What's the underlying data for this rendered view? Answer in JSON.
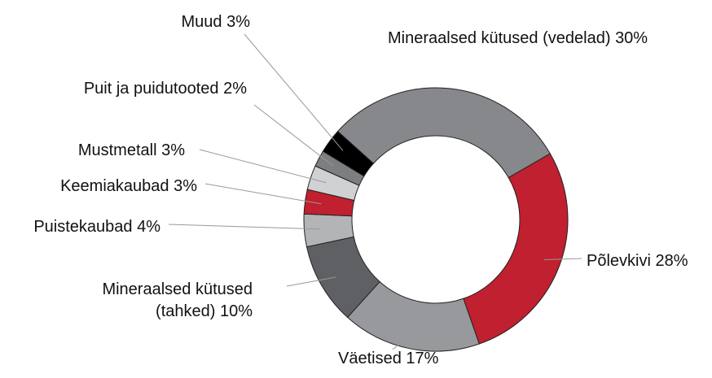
{
  "chart_data": {
    "type": "donut",
    "categories": [
      "Mineraalsed kütused (vedelad)",
      "Põlevkivi",
      "Väetised",
      "Mineraalsed kütused (tahked)",
      "Puistekaubad",
      "Keemiakaubad",
      "Mustmetall",
      "Puit ja puidutooted",
      "Muud"
    ],
    "values": [
      30,
      28,
      17,
      10,
      4,
      3,
      3,
      2,
      3
    ],
    "value_labels": [
      "30%",
      "28%",
      "17%",
      "10%",
      "4%",
      "3%",
      "3%",
      "2%",
      "3%"
    ],
    "colors": [
      "#87888c",
      "#c0202f",
      "#98999c",
      "#5f6064",
      "#b3b4b6",
      "#c0202f",
      "#d0d1d3",
      "#7d7e81",
      "#000000"
    ]
  }
}
